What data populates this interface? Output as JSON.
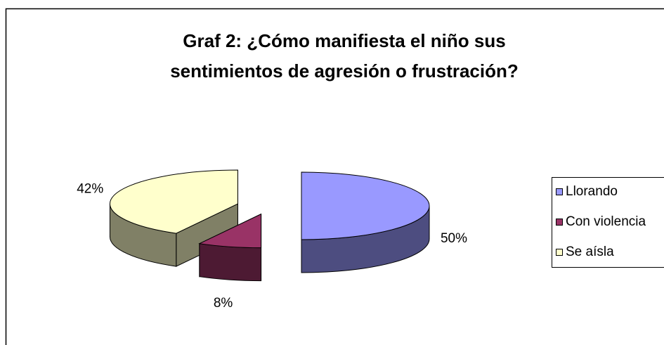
{
  "chart_data": {
    "type": "pie3d",
    "title": [
      "Graf 2: ¿Cómo manifiesta el niño sus",
      "sentimientos de agresión o frustración?"
    ],
    "categories": [
      "Llorando",
      "Con violencia",
      "Se aísla"
    ],
    "values": [
      50,
      8,
      42
    ],
    "value_labels": [
      "50%",
      "8%",
      "42%"
    ],
    "colors": [
      "#9999ff",
      "#993366",
      "#ffffcc"
    ],
    "legend": "right"
  }
}
